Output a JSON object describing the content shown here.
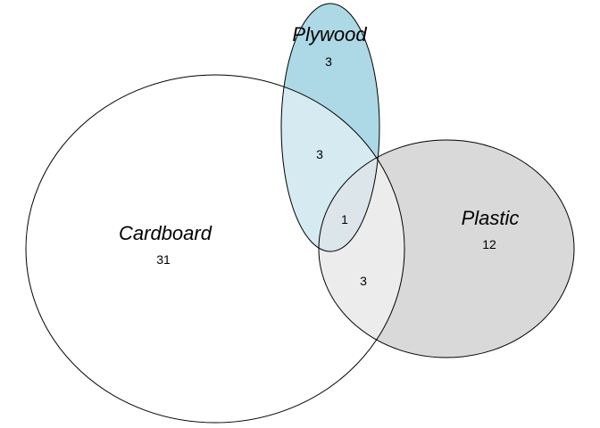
{
  "chart_data": {
    "type": "venn",
    "sets": [
      {
        "key": "cardboard",
        "name": "Cardboard",
        "only": 31,
        "fill": "#ffffff"
      },
      {
        "key": "plywood",
        "name": "Plywood",
        "only": 3,
        "fill": "#add8e6"
      },
      {
        "key": "plastic",
        "name": "Plastic",
        "only": 12,
        "fill": "#d9d9d9"
      }
    ],
    "intersections": [
      {
        "key": "cardboard-plywood",
        "sets": [
          "Cardboard",
          "Plywood"
        ],
        "value": 3
      },
      {
        "key": "cardboard-plastic",
        "sets": [
          "Cardboard",
          "Plastic"
        ],
        "value": 3
      },
      {
        "key": "plywood-plastic",
        "sets": [
          "Plywood",
          "Plastic"
        ],
        "value": 0
      },
      {
        "key": "cardboard-plywood-plastic",
        "sets": [
          "Cardboard",
          "Plywood",
          "Plastic"
        ],
        "value": 1
      }
    ]
  }
}
